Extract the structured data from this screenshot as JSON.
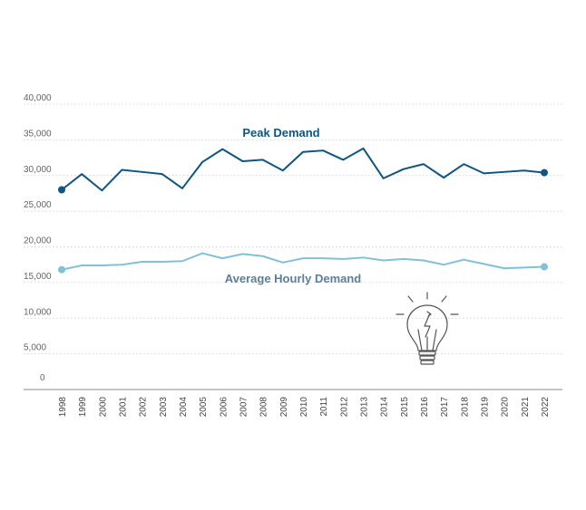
{
  "chart_data": {
    "type": "line",
    "title": "",
    "xlabel": "",
    "ylabel": "",
    "ylim": [
      0,
      40000
    ],
    "y_ticks": [
      "0",
      "5,000",
      "10,000",
      "15,000",
      "20,000",
      "25,000",
      "30,000",
      "35,000",
      "40,000"
    ],
    "y_tick_values": [
      0,
      5000,
      10000,
      15000,
      20000,
      25000,
      30000,
      35000,
      40000
    ],
    "grid": true,
    "legend": "inline labels",
    "categories": [
      "1998",
      "1999",
      "2000",
      "2001",
      "2002",
      "2003",
      "2004",
      "2005",
      "2006",
      "2007",
      "2008",
      "2009",
      "2010",
      "2011",
      "2012",
      "2013",
      "2014",
      "2015",
      "2016",
      "2017",
      "2018",
      "2019",
      "2020",
      "2021",
      "2022"
    ],
    "series": [
      {
        "name": "Peak Demand",
        "color": "#0d5582",
        "values": [
          28000,
          30200,
          27900,
          30800,
          30500,
          30200,
          28200,
          31900,
          33700,
          32000,
          32200,
          30700,
          33300,
          33500,
          32200,
          33800,
          29600,
          30900,
          31600,
          29700,
          31600,
          30300,
          30500,
          30700,
          30400
        ]
      },
      {
        "name": "Average Hourly Demand",
        "color": "#7fc1d6",
        "values": [
          16800,
          17400,
          17400,
          17500,
          17900,
          17900,
          18000,
          19100,
          18400,
          19000,
          18700,
          17800,
          18400,
          18400,
          18300,
          18500,
          18100,
          18300,
          18100,
          17500,
          18200,
          17600,
          17000,
          17100,
          17200
        ]
      }
    ]
  },
  "decoration": {
    "icon": "lightbulb-icon"
  }
}
